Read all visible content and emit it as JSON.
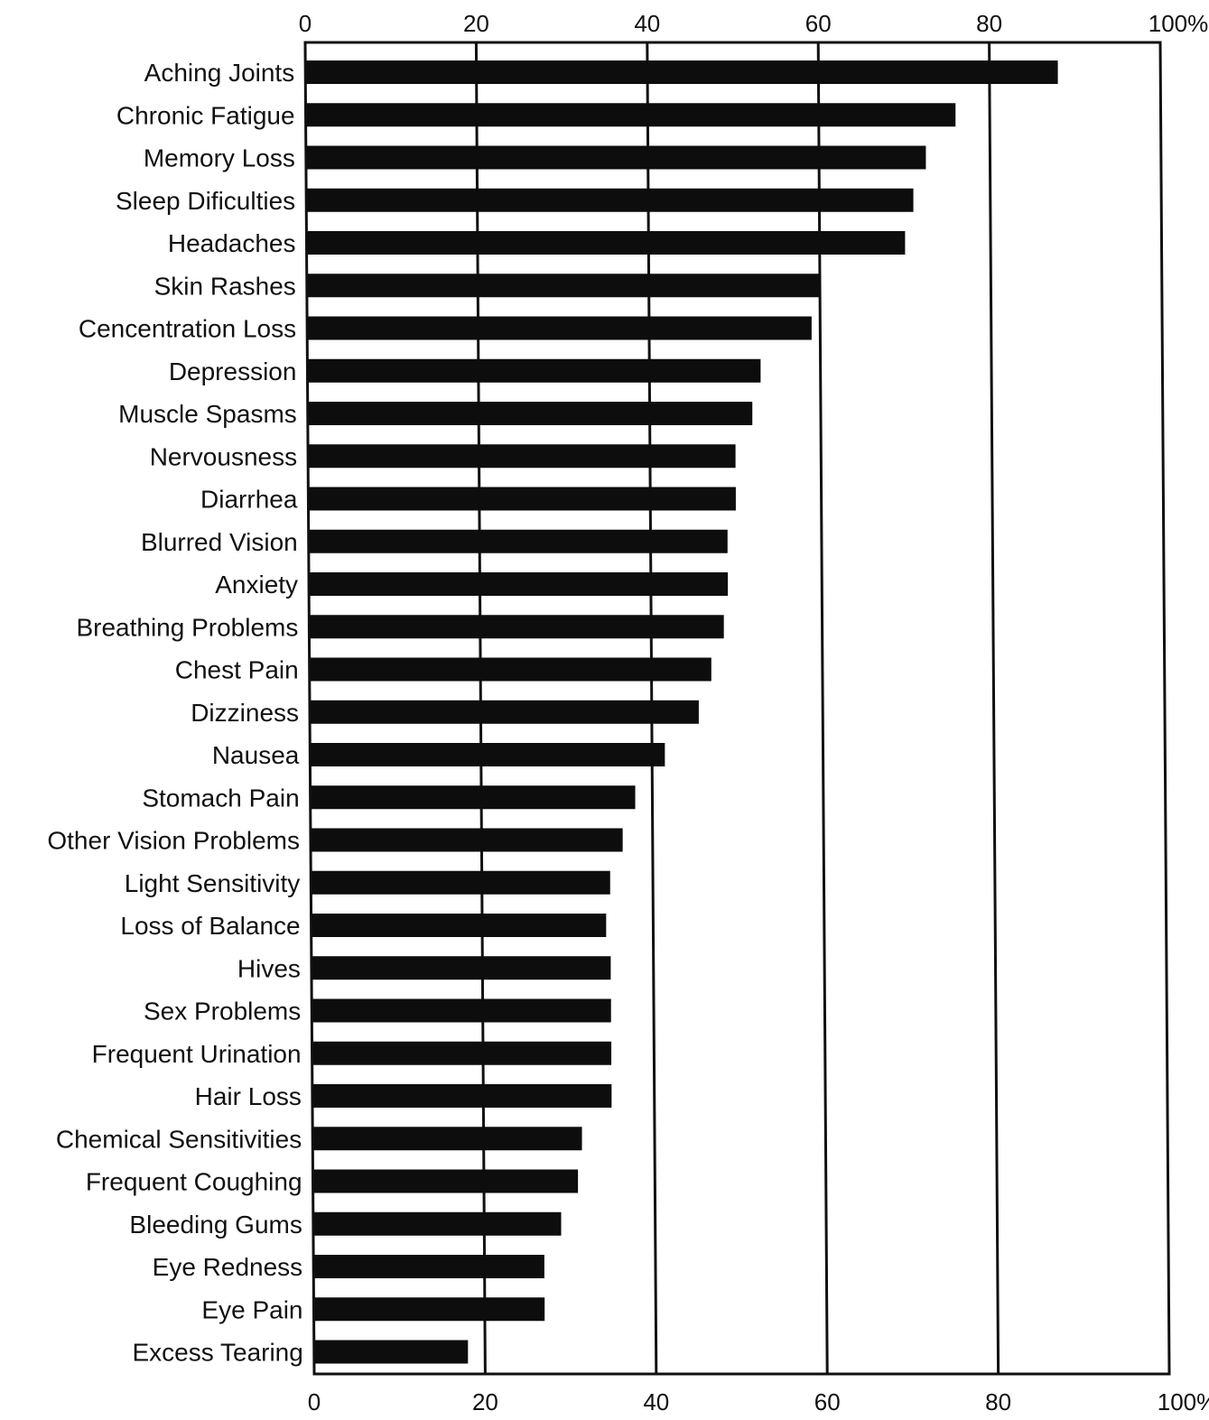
{
  "chart_data": {
    "type": "bar",
    "orientation": "horizontal",
    "title": "",
    "xlabel": "",
    "ylabel": "",
    "xlim": [
      0,
      100
    ],
    "grid": true,
    "tick_values": [
      0,
      20,
      40,
      60,
      80,
      100
    ],
    "tick_labels": [
      "0",
      "20",
      "40",
      "60",
      "80",
      "100%"
    ],
    "bar_color": "#0d0d0d",
    "categories": [
      "Aching Joints",
      "Chronic Fatigue",
      "Memory Loss",
      "Sleep Dificulties",
      "Headaches",
      "Skin Rashes",
      "Cencentration Loss",
      "Depression",
      "Muscle Spasms",
      "Nervousness",
      "Diarrhea",
      "Blurred Vision",
      "Anxiety",
      "Breathing Problems",
      "Chest Pain",
      "Dizziness",
      "Nausea",
      "Stomach Pain",
      "Other Vision Problems",
      "Light Sensitivity",
      "Loss of Balance",
      "Hives",
      "Sex Problems",
      "Frequent Urination",
      "Hair Loss",
      "Chemical Sensitivities",
      "Frequent Coughing",
      "Bleeding Gums",
      "Eye Redness",
      "Eye Pain",
      "Excess Tearing"
    ],
    "values": [
      88,
      76,
      72.5,
      71,
      70,
      60,
      59,
      53,
      52,
      50,
      50,
      49,
      49,
      48.5,
      47,
      45.5,
      41.5,
      38,
      36.5,
      35,
      34.5,
      35,
      35,
      35,
      35,
      31.5,
      31,
      29,
      27,
      27,
      18
    ]
  }
}
